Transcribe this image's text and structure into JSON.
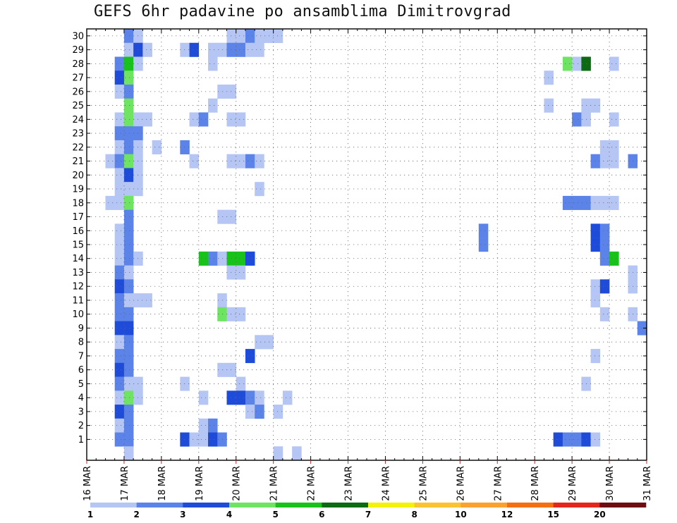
{
  "chart_data": {
    "type": "heatmap",
    "title": "GEFS 6hr padavine po ansamblima Dimitrovgrad",
    "xlabel": "",
    "ylabel": "",
    "x_start": "16 MAR 00Z",
    "x_end": "31 MAR 00Z",
    "x_step_hours": 6,
    "x_ticks": [
      "16 MAR",
      "17 MAR",
      "18 MAR",
      "19 MAR",
      "20 MAR",
      "21 MAR",
      "22 MAR",
      "23 MAR",
      "24 MAR",
      "25 MAR",
      "26 MAR",
      "27 MAR",
      "28 MAR",
      "29 MAR",
      "30 MAR",
      "31 MAR"
    ],
    "y_ticks": [
      1,
      2,
      3,
      4,
      5,
      6,
      7,
      8,
      9,
      10,
      11,
      12,
      13,
      14,
      15,
      16,
      17,
      18,
      19,
      20,
      21,
      22,
      23,
      24,
      25,
      26,
      27,
      28,
      29,
      30
    ],
    "grid": true,
    "legend": "bottom colorbar",
    "colorbar": {
      "labels": [
        "1",
        "2",
        "3",
        "4",
        "5",
        "6",
        "7",
        "8",
        "10",
        "12",
        "15",
        "20"
      ],
      "colors": [
        "#b6c6f4",
        "#5b83e8",
        "#1e4cd8",
        "#6fe462",
        "#19c21a",
        "#0c6a12",
        "#f2f20a",
        "#fbc234",
        "#fba12f",
        "#f46e14",
        "#e3271d",
        "#6e0e12"
      ]
    },
    "cells_note": "each cell: [member, time step from 16 MAR 00Z, color level 0-11]",
    "cells": [
      [
        30,
        4,
        1
      ],
      [
        30,
        5,
        0
      ],
      [
        30,
        15,
        0
      ],
      [
        30,
        16,
        0
      ],
      [
        30,
        17,
        1
      ],
      [
        30,
        18,
        0
      ],
      [
        30,
        19,
        0
      ],
      [
        30,
        20,
        0
      ],
      [
        29,
        4,
        0
      ],
      [
        29,
        5,
        2
      ],
      [
        29,
        6,
        0
      ],
      [
        29,
        10,
        0
      ],
      [
        29,
        11,
        2
      ],
      [
        29,
        13,
        0
      ],
      [
        29,
        14,
        0
      ],
      [
        29,
        15,
        1
      ],
      [
        29,
        16,
        1
      ],
      [
        29,
        17,
        0
      ],
      [
        29,
        18,
        0
      ],
      [
        28,
        3,
        1
      ],
      [
        28,
        4,
        4
      ],
      [
        28,
        5,
        0
      ],
      [
        28,
        13,
        0
      ],
      [
        28,
        51,
        3
      ],
      [
        28,
        52,
        0
      ],
      [
        28,
        53,
        5
      ],
      [
        28,
        56,
        0
      ],
      [
        27,
        3,
        2
      ],
      [
        27,
        4,
        3
      ],
      [
        27,
        49,
        0
      ],
      [
        26,
        3,
        0
      ],
      [
        26,
        4,
        1
      ],
      [
        26,
        14,
        0
      ],
      [
        26,
        15,
        0
      ],
      [
        25,
        4,
        3
      ],
      [
        25,
        13,
        0
      ],
      [
        25,
        49,
        0
      ],
      [
        25,
        53,
        0
      ],
      [
        25,
        54,
        0
      ],
      [
        24,
        3,
        0
      ],
      [
        24,
        4,
        3
      ],
      [
        24,
        5,
        0
      ],
      [
        24,
        6,
        0
      ],
      [
        24,
        11,
        0
      ],
      [
        24,
        12,
        1
      ],
      [
        24,
        15,
        0
      ],
      [
        24,
        16,
        0
      ],
      [
        24,
        52,
        1
      ],
      [
        24,
        53,
        0
      ],
      [
        24,
        56,
        0
      ],
      [
        23,
        3,
        1
      ],
      [
        23,
        4,
        1
      ],
      [
        23,
        5,
        1
      ],
      [
        22,
        3,
        0
      ],
      [
        22,
        4,
        1
      ],
      [
        22,
        5,
        0
      ],
      [
        22,
        7,
        0
      ],
      [
        22,
        10,
        1
      ],
      [
        22,
        55,
        0
      ],
      [
        22,
        56,
        0
      ],
      [
        21,
        2,
        0
      ],
      [
        21,
        3,
        1
      ],
      [
        21,
        4,
        3
      ],
      [
        21,
        5,
        0
      ],
      [
        21,
        11,
        0
      ],
      [
        21,
        15,
        0
      ],
      [
        21,
        16,
        0
      ],
      [
        21,
        17,
        1
      ],
      [
        21,
        18,
        0
      ],
      [
        21,
        54,
        1
      ],
      [
        21,
        55,
        0
      ],
      [
        21,
        56,
        0
      ],
      [
        21,
        58,
        1
      ],
      [
        20,
        3,
        0
      ],
      [
        20,
        4,
        2
      ],
      [
        20,
        5,
        0
      ],
      [
        19,
        3,
        0
      ],
      [
        19,
        4,
        0
      ],
      [
        19,
        5,
        0
      ],
      [
        19,
        18,
        0
      ],
      [
        18,
        2,
        0
      ],
      [
        18,
        3,
        0
      ],
      [
        18,
        4,
        3
      ],
      [
        18,
        51,
        1
      ],
      [
        18,
        52,
        1
      ],
      [
        18,
        53,
        1
      ],
      [
        18,
        54,
        0
      ],
      [
        18,
        55,
        0
      ],
      [
        18,
        56,
        0
      ],
      [
        17,
        4,
        1
      ],
      [
        17,
        14,
        0
      ],
      [
        17,
        15,
        0
      ],
      [
        16,
        3,
        0
      ],
      [
        16,
        4,
        1
      ],
      [
        16,
        42,
        1
      ],
      [
        16,
        54,
        2
      ],
      [
        16,
        55,
        1
      ],
      [
        15,
        3,
        0
      ],
      [
        15,
        4,
        1
      ],
      [
        15,
        42,
        1
      ],
      [
        15,
        54,
        2
      ],
      [
        15,
        55,
        1
      ],
      [
        14,
        3,
        0
      ],
      [
        14,
        4,
        1
      ],
      [
        14,
        5,
        0
      ],
      [
        14,
        12,
        4
      ],
      [
        14,
        13,
        1
      ],
      [
        14,
        14,
        0
      ],
      [
        14,
        15,
        4
      ],
      [
        14,
        16,
        4
      ],
      [
        14,
        17,
        2
      ],
      [
        14,
        55,
        1
      ],
      [
        14,
        56,
        4
      ],
      [
        13,
        3,
        1
      ],
      [
        13,
        4,
        0
      ],
      [
        13,
        15,
        0
      ],
      [
        13,
        16,
        0
      ],
      [
        13,
        58,
        0
      ],
      [
        12,
        3,
        2
      ],
      [
        12,
        4,
        1
      ],
      [
        12,
        54,
        0
      ],
      [
        12,
        55,
        2
      ],
      [
        12,
        58,
        0
      ],
      [
        11,
        3,
        1
      ],
      [
        11,
        4,
        0
      ],
      [
        11,
        5,
        0
      ],
      [
        11,
        6,
        0
      ],
      [
        11,
        14,
        0
      ],
      [
        11,
        54,
        0
      ],
      [
        10,
        3,
        1
      ],
      [
        10,
        4,
        1
      ],
      [
        10,
        14,
        3
      ],
      [
        10,
        15,
        0
      ],
      [
        10,
        16,
        0
      ],
      [
        10,
        55,
        0
      ],
      [
        10,
        58,
        0
      ],
      [
        9,
        3,
        2
      ],
      [
        9,
        4,
        2
      ],
      [
        9,
        59,
        1
      ],
      [
        8,
        3,
        0
      ],
      [
        8,
        4,
        1
      ],
      [
        8,
        18,
        0
      ],
      [
        8,
        19,
        0
      ],
      [
        7,
        3,
        1
      ],
      [
        7,
        4,
        1
      ],
      [
        7,
        17,
        2
      ],
      [
        7,
        54,
        0
      ],
      [
        6,
        3,
        2
      ],
      [
        6,
        4,
        1
      ],
      [
        6,
        14,
        0
      ],
      [
        6,
        15,
        0
      ],
      [
        5,
        3,
        1
      ],
      [
        5,
        4,
        0
      ],
      [
        5,
        5,
        0
      ],
      [
        5,
        10,
        0
      ],
      [
        5,
        16,
        0
      ],
      [
        5,
        53,
        0
      ],
      [
        4,
        3,
        0
      ],
      [
        4,
        4,
        3
      ],
      [
        4,
        5,
        0
      ],
      [
        4,
        12,
        0
      ],
      [
        4,
        15,
        2
      ],
      [
        4,
        16,
        2
      ],
      [
        4,
        17,
        1
      ],
      [
        4,
        18,
        0
      ],
      [
        4,
        21,
        0
      ],
      [
        3,
        3,
        2
      ],
      [
        3,
        4,
        1
      ],
      [
        3,
        17,
        0
      ],
      [
        3,
        18,
        1
      ],
      [
        3,
        20,
        0
      ],
      [
        2,
        3,
        0
      ],
      [
        2,
        4,
        1
      ],
      [
        2,
        12,
        0
      ],
      [
        2,
        13,
        1
      ],
      [
        1,
        3,
        1
      ],
      [
        1,
        4,
        1
      ],
      [
        1,
        10,
        2
      ],
      [
        1,
        11,
        0
      ],
      [
        1,
        12,
        0
      ],
      [
        1,
        13,
        2
      ],
      [
        1,
        14,
        1
      ],
      [
        1,
        50,
        2
      ],
      [
        1,
        51,
        1
      ],
      [
        1,
        52,
        1
      ],
      [
        1,
        53,
        2
      ],
      [
        1,
        54,
        0
      ],
      [
        0,
        4,
        0
      ],
      [
        0,
        20,
        0
      ],
      [
        0,
        22,
        0
      ]
    ]
  }
}
